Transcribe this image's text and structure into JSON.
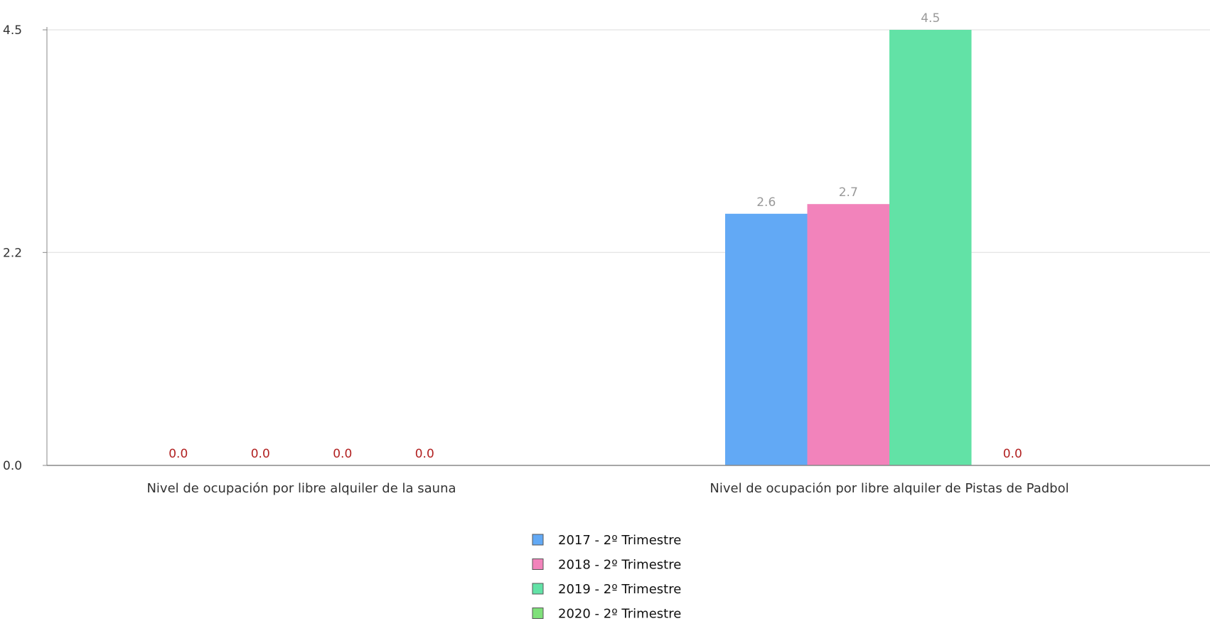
{
  "chart_data": {
    "type": "bar",
    "title": "",
    "xlabel": "",
    "ylabel": "",
    "categories": [
      "Nivel de ocupación por libre alquiler de la sauna",
      "Nivel de ocupación por libre alquiler de Pistas de Padbol"
    ],
    "series": [
      {
        "name": "2017 - 2º Trimestre",
        "color": "#62a9f5",
        "values": [
          0.0,
          2.6
        ]
      },
      {
        "name": "2018 - 2º Trimestre",
        "color": "#f283bb",
        "values": [
          0.0,
          2.7
        ]
      },
      {
        "name": "2019 - 2º Trimestre",
        "color": "#62e2a6",
        "values": [
          0.0,
          4.5
        ]
      },
      {
        "name": "2020 - 2º Trimestre",
        "color": "#7fe07a",
        "values": [
          0.0,
          0.0
        ]
      }
    ],
    "y_ticks": [
      "0.0",
      "2.2",
      "4.5"
    ],
    "ylim": [
      0,
      4.5
    ],
    "grid": true,
    "legend_position": "bottom-center",
    "zero_label_color": "#b22222",
    "value_label_color": "#999999"
  }
}
